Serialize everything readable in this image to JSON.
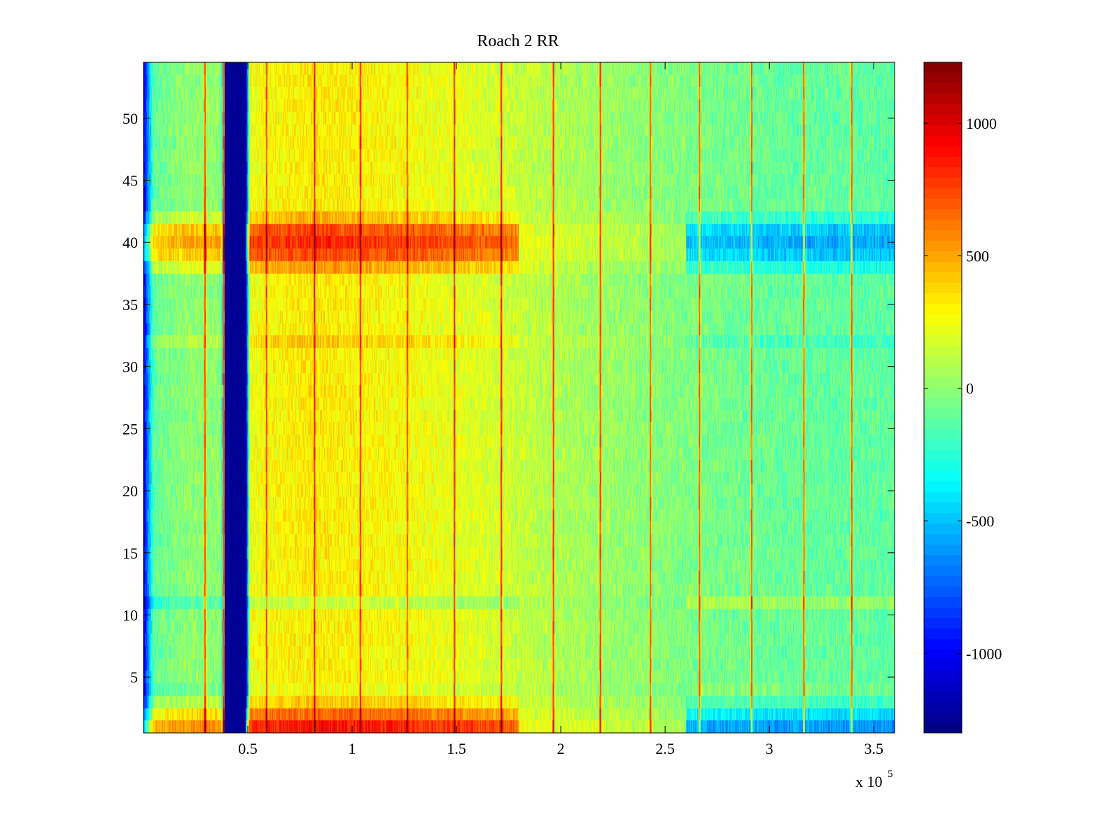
{
  "chart_data": {
    "type": "heatmap",
    "title": "Roach 2 RR",
    "xlabel": "",
    "ylabel": "",
    "x_exponent_label": "x 10",
    "x_exponent_power": "5",
    "xlim": [
      0,
      360000
    ],
    "ylim": [
      0.5,
      54.5
    ],
    "x_ticks": [
      {
        "value": 50000,
        "label": "0.5"
      },
      {
        "value": 100000,
        "label": "1"
      },
      {
        "value": 150000,
        "label": "1.5"
      },
      {
        "value": 200000,
        "label": "2"
      },
      {
        "value": 250000,
        "label": "2.5"
      },
      {
        "value": 300000,
        "label": "3"
      },
      {
        "value": 350000,
        "label": "3.5"
      }
    ],
    "y_ticks": [
      {
        "value": 5,
        "label": "5"
      },
      {
        "value": 10,
        "label": "10"
      },
      {
        "value": 15,
        "label": "15"
      },
      {
        "value": 20,
        "label": "20"
      },
      {
        "value": 25,
        "label": "25"
      },
      {
        "value": 30,
        "label": "30"
      },
      {
        "value": 35,
        "label": "35"
      },
      {
        "value": 40,
        "label": "40"
      },
      {
        "value": 45,
        "label": "45"
      },
      {
        "value": 50,
        "label": "50"
      }
    ],
    "rows": 54,
    "colormap": "jet",
    "color_range": [
      -1300,
      1230
    ],
    "colorbar_ticks": [
      {
        "value": 1000,
        "label": "1000"
      },
      {
        "value": 500,
        "label": "500"
      },
      {
        "value": 0,
        "label": "0"
      },
      {
        "value": -500,
        "label": "-500"
      },
      {
        "value": -1000,
        "label": "-1000"
      }
    ],
    "column_profile": [
      {
        "x": 0,
        "value": -1100
      },
      {
        "x": 2000,
        "value": -700
      },
      {
        "x": 5000,
        "value": -100
      },
      {
        "x": 20000,
        "value": 0
      },
      {
        "x": 37000,
        "value": 0
      },
      {
        "x": 39000,
        "value": -1250
      },
      {
        "x": 49000,
        "value": -1250
      },
      {
        "x": 51000,
        "value": 250
      },
      {
        "x": 80000,
        "value": 330
      },
      {
        "x": 120000,
        "value": 280
      },
      {
        "x": 160000,
        "value": 200
      },
      {
        "x": 200000,
        "value": 80
      },
      {
        "x": 250000,
        "value": -20
      },
      {
        "x": 300000,
        "value": -90
      },
      {
        "x": 360000,
        "value": -120
      }
    ],
    "row_offsets": [
      {
        "row": 1,
        "value": 550
      },
      {
        "row": 2,
        "value": 350
      },
      {
        "row": 3,
        "value": 100
      },
      {
        "row": 4,
        "value": -50
      },
      {
        "row": 11,
        "value": -150
      },
      {
        "row": 32,
        "value": 100
      },
      {
        "row": 38,
        "value": 200
      },
      {
        "row": 39,
        "value": 420
      },
      {
        "row": 40,
        "value": 500
      },
      {
        "row": 41,
        "value": 420
      },
      {
        "row": 42,
        "value": 150
      }
    ],
    "stripes": [
      {
        "x": 29500,
        "value": 900
      },
      {
        "x": 38500,
        "value": 900
      },
      {
        "x": 59000,
        "value": 900
      },
      {
        "x": 82000,
        "value": 1000
      },
      {
        "x": 104000,
        "value": 1000
      },
      {
        "x": 126500,
        "value": 900
      },
      {
        "x": 149000,
        "value": 1000
      },
      {
        "x": 171500,
        "value": 1000
      },
      {
        "x": 196500,
        "value": 900
      },
      {
        "x": 219000,
        "value": 900
      },
      {
        "x": 243000,
        "value": 800
      },
      {
        "x": 266500,
        "value": 800
      },
      {
        "x": 291500,
        "value": 800
      },
      {
        "x": 316500,
        "value": 800
      },
      {
        "x": 339500,
        "value": 800
      }
    ]
  }
}
